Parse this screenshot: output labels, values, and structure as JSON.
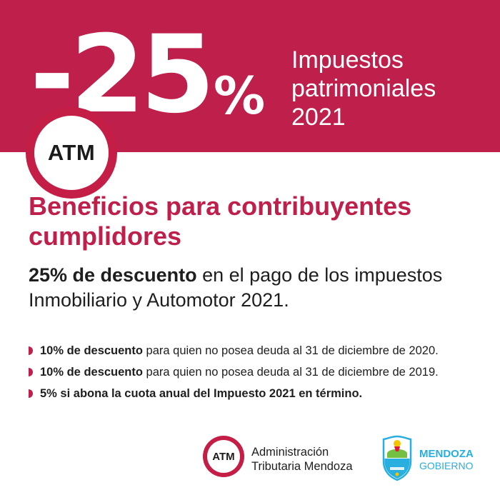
{
  "banner": {
    "discount_number": "-25",
    "discount_percent": "%",
    "headline_lines": [
      "Impuestos",
      "patrimoniales",
      "2021"
    ],
    "badge_text": "ATM",
    "color": "#bf1f4b"
  },
  "main": {
    "title": "Beneficios para contribuyentes cumplidores",
    "subtitle_bold": "25% de descuento",
    "subtitle_rest": " en el pago de los impuestos Inmobiliario y Automotor 2021."
  },
  "bullets": [
    {
      "bold": "10% de descuento",
      "rest": " para quien no posea deuda al 31 de diciembre de 2020."
    },
    {
      "bold": "10% de descuento",
      "rest": " para quien no posea deuda al 31 de diciembre de 2019."
    },
    {
      "bold": "5% si abona la cuota anual del Impuesto 2021 en término.",
      "rest": ""
    }
  ],
  "footer": {
    "atm_logo_text": "ATM",
    "agency_line1": "Administración",
    "agency_line2": "Tributaria Mendoza",
    "gov_line1": "MENDOZA",
    "gov_line2": "GOBIERNO",
    "gov_color": "#29aee0",
    "crest_icon": "mendoza-crest-icon"
  }
}
